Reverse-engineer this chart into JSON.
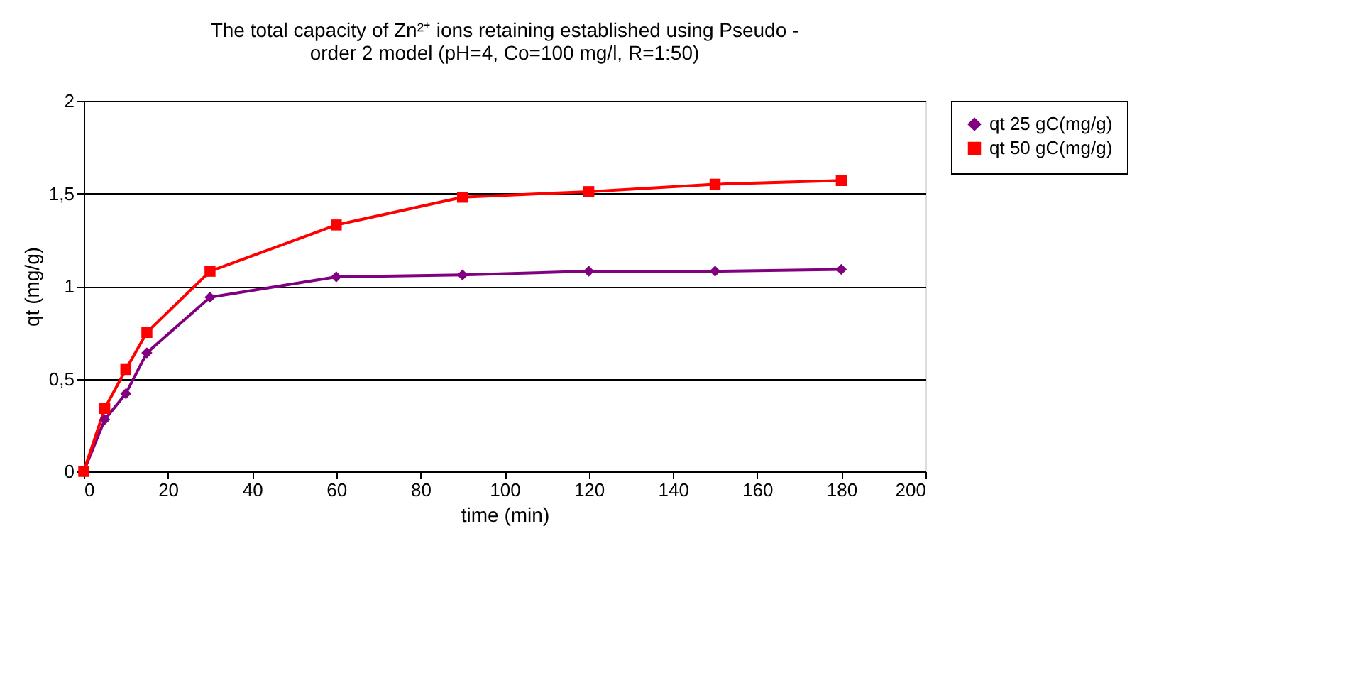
{
  "chart_data": {
    "type": "line",
    "title": [
      "The total capacity of  Zn²⁺ ions retaining established using Pseudo -",
      "order 2 model (pH=4, Co=100 mg/l, R=1:50)"
    ],
    "xlabel": "time (min)",
    "ylabel": "qt (mg/g)",
    "x": [
      0,
      5,
      10,
      15,
      30,
      60,
      90,
      120,
      150,
      180
    ],
    "series": [
      {
        "name": "qt 25 gC(mg/g)",
        "color": "#800080",
        "marker": "diamond",
        "values": [
          0,
          0.28,
          0.42,
          0.64,
          0.94,
          1.05,
          1.06,
          1.08,
          1.08,
          1.09
        ]
      },
      {
        "name": "qt 50 gC(mg/g)",
        "color": "#ff0000",
        "marker": "square",
        "values": [
          0,
          0.34,
          0.55,
          0.75,
          1.08,
          1.33,
          1.48,
          1.51,
          1.55,
          1.57
        ]
      }
    ],
    "xlim": [
      0,
      200
    ],
    "xticks": [
      0,
      20,
      40,
      60,
      80,
      100,
      120,
      140,
      160,
      180,
      200
    ],
    "ylim": [
      0,
      2
    ],
    "yticks": [
      0,
      {
        "value": 0.5,
        "label": "0,5"
      },
      1,
      {
        "value": 1.5,
        "label": "1,5"
      },
      2
    ],
    "grid": "y",
    "legend": "right",
    "line_style": "solid"
  }
}
